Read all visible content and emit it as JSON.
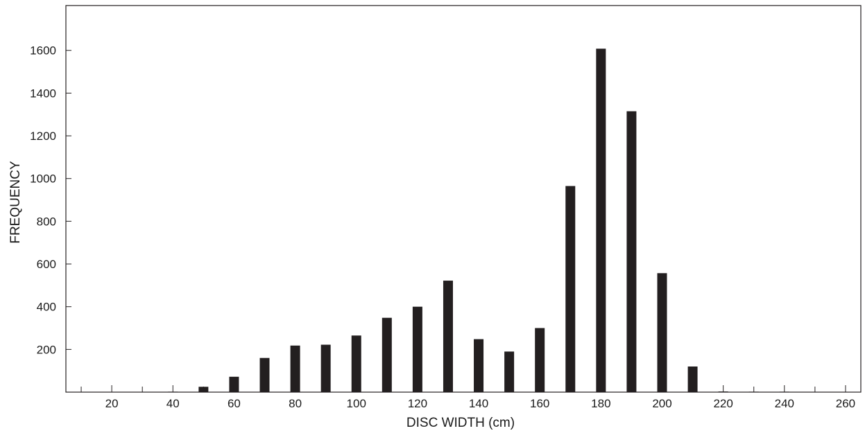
{
  "chart_data": {
    "type": "bar",
    "title": "",
    "xlabel": "DISC WIDTH (cm)",
    "ylabel": "FREQUENCY",
    "x_ticks": [
      20,
      40,
      60,
      80,
      100,
      120,
      140,
      160,
      180,
      200,
      220,
      240,
      260
    ],
    "y_ticks": [
      200,
      400,
      600,
      800,
      1000,
      1200,
      1400,
      1600
    ],
    "xlim": [
      5,
      265
    ],
    "ylim": [
      0,
      1810
    ],
    "grid": false,
    "legend": "none",
    "bar_color": "#231f20",
    "series": [
      {
        "x": [
          40,
          50,
          60,
          70,
          80,
          90,
          100,
          110,
          120,
          130,
          140,
          150,
          160,
          170,
          180,
          190,
          200,
          210,
          220,
          230,
          240
        ],
        "values": [
          2,
          25,
          72,
          160,
          218,
          222,
          265,
          348,
          400,
          522,
          248,
          190,
          300,
          965,
          1608,
          1315,
          557,
          120,
          3,
          2,
          2
        ]
      }
    ]
  }
}
